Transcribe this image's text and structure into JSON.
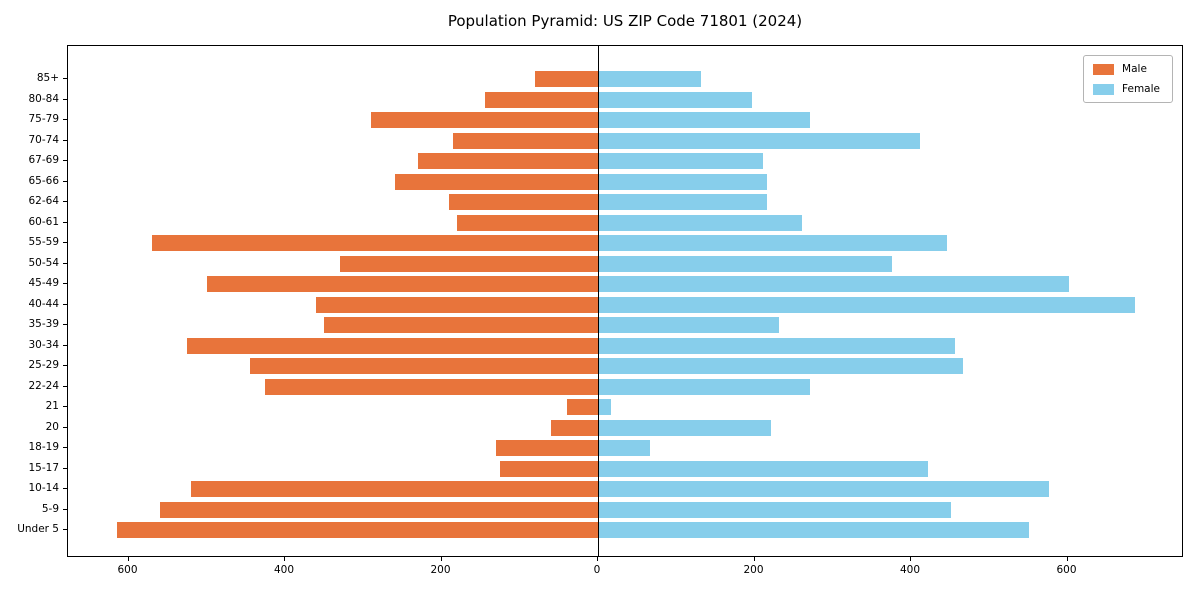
{
  "title": "Population Pyramid: US ZIP Code 71801 (2024)",
  "legend": {
    "male": "Male",
    "female": "Female"
  },
  "colors": {
    "male": "#e8743b",
    "female": "#87ceeb",
    "axis": "#000000",
    "background": "#ffffff"
  },
  "chart_data": {
    "type": "bar",
    "subtype": "population-pyramid",
    "orientation": "horizontal",
    "title": "Population Pyramid: US ZIP Code 71801 (2024)",
    "categories": [
      "85+",
      "80-84",
      "75-79",
      "70-74",
      "67-69",
      "65-66",
      "62-64",
      "60-61",
      "55-59",
      "50-54",
      "45-49",
      "40-44",
      "35-39",
      "30-34",
      "25-29",
      "22-24",
      "21",
      "20",
      "18-19",
      "15-17",
      "10-14",
      "5-9",
      "Under 5"
    ],
    "series": [
      {
        "name": "Male",
        "side": "left",
        "color": "#e8743b",
        "values": [
          80,
          145,
          290,
          185,
          230,
          260,
          190,
          180,
          570,
          330,
          500,
          360,
          350,
          525,
          445,
          425,
          40,
          60,
          130,
          125,
          520,
          560,
          615
        ]
      },
      {
        "name": "Female",
        "side": "right",
        "color": "#87ceeb",
        "values": [
          130,
          195,
          270,
          410,
          210,
          215,
          215,
          260,
          445,
          375,
          600,
          685,
          230,
          455,
          465,
          270,
          15,
          220,
          65,
          420,
          575,
          450,
          550
        ]
      }
    ],
    "x_ticks": [
      -600,
      -400,
      -200,
      0,
      200,
      400,
      600
    ],
    "x_tick_labels": [
      "600",
      "400",
      "200",
      "0",
      "200",
      "400",
      "600"
    ],
    "xlim": [
      -677,
      749
    ],
    "xlabel": "",
    "ylabel": "",
    "grid": false,
    "legend_position": "upper-right"
  }
}
